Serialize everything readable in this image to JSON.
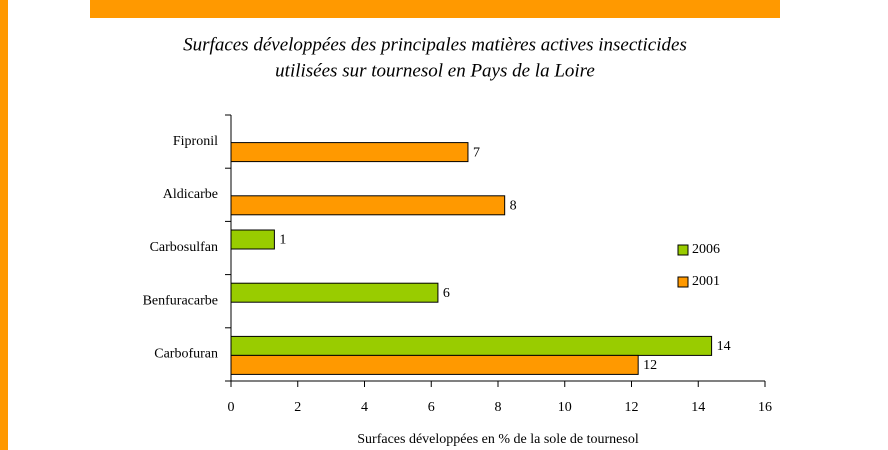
{
  "chart_data": {
    "type": "hbar",
    "title": "Surfaces développées des principales matières actives insecticides",
    "subtitle": "utilisées sur tournesol en Pays de la Loire",
    "xlabel": "Surfaces développées en % de la sole de tournesol",
    "categories": [
      "Fipronil",
      "Aldicarbe",
      "Carbosulfan",
      "Benfuracarbe",
      "Carbofuran"
    ],
    "series": [
      {
        "name": "2006",
        "color": "#99cc00",
        "values": [
          null,
          null,
          1.3,
          6.2,
          14.4
        ],
        "value_labels": [
          null,
          null,
          "1",
          "6",
          "14"
        ]
      },
      {
        "name": "2001",
        "color": "#ff9900",
        "values": [
          7.1,
          8.2,
          null,
          null,
          12.2
        ],
        "value_labels": [
          "7",
          "8",
          null,
          null,
          "12"
        ]
      }
    ],
    "xlim": [
      0,
      16
    ],
    "xticks": [
      0,
      2,
      4,
      6,
      8,
      10,
      12,
      14,
      16
    ],
    "legend": "right"
  }
}
